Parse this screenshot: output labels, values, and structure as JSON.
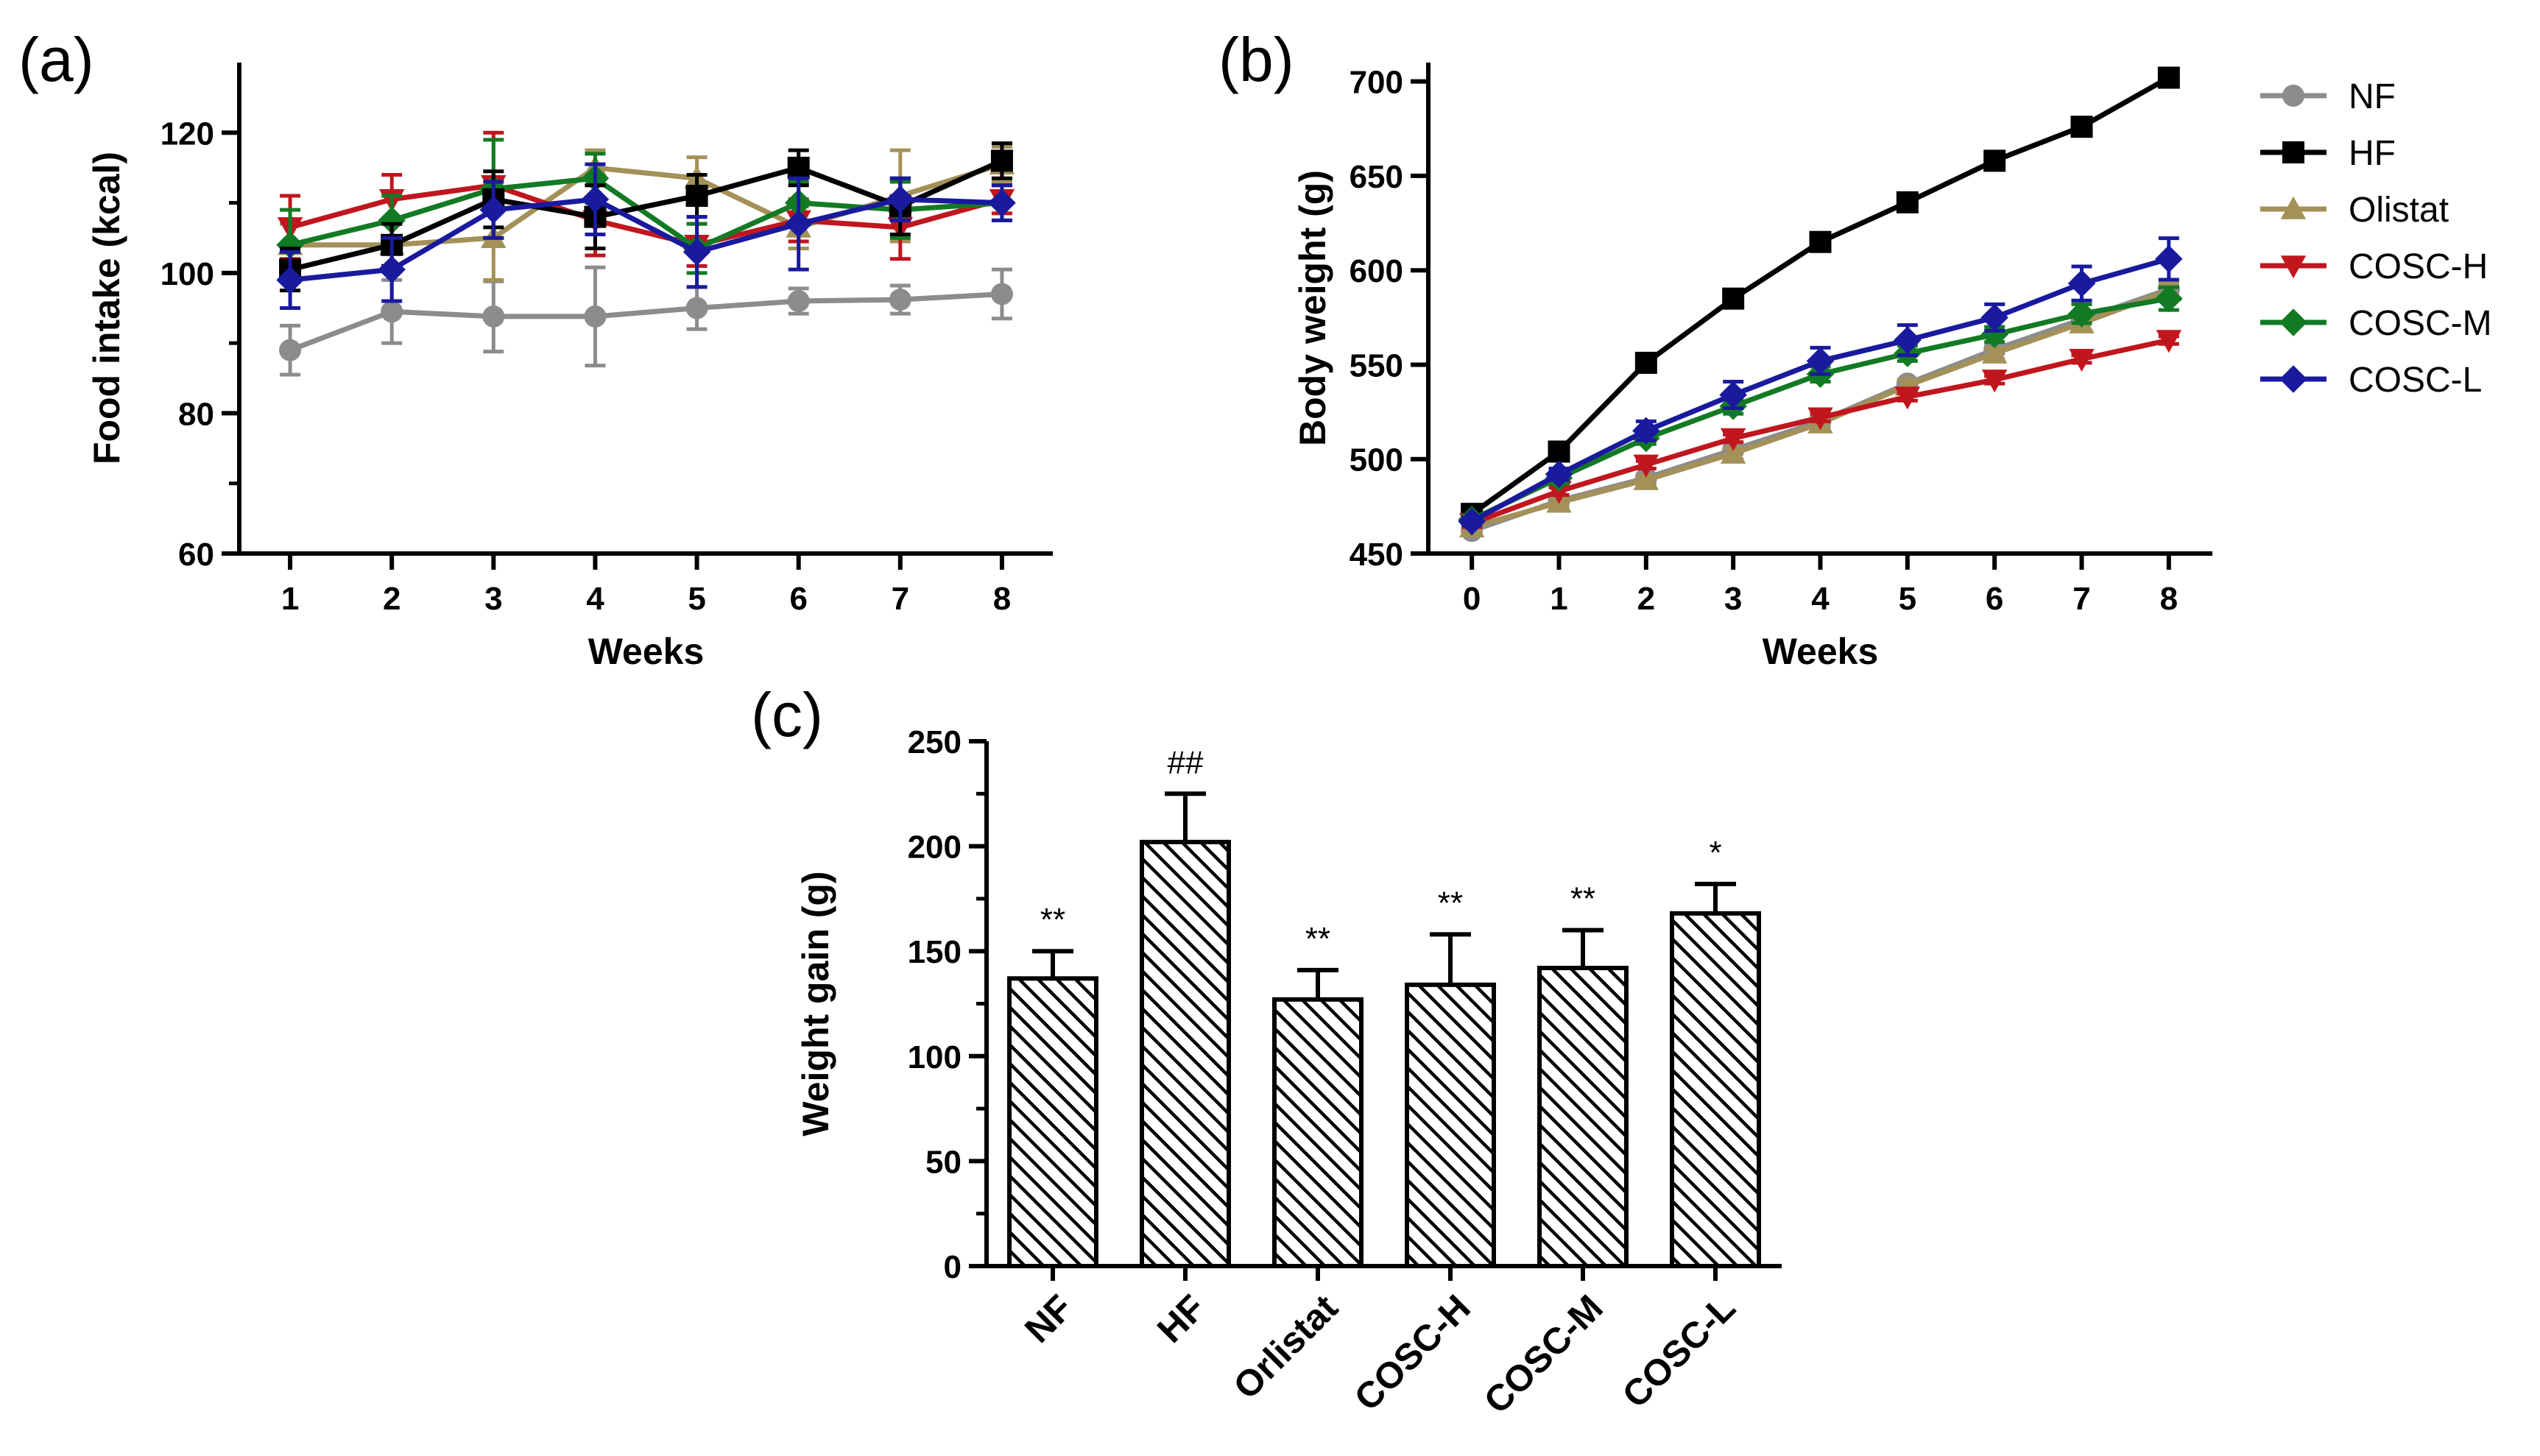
{
  "chart_data": [
    {
      "id": "a",
      "panel_label": "(a)",
      "type": "line",
      "xlabel": "Weeks",
      "ylabel": "Food intake (kcal)",
      "xlim": [
        0.5,
        8.5
      ],
      "ylim": [
        60,
        130
      ],
      "x_ticks": [
        1,
        2,
        3,
        4,
        5,
        6,
        7,
        8
      ],
      "y_ticks": [
        60,
        80,
        100,
        120
      ],
      "x": [
        1,
        2,
        3,
        4,
        5,
        6,
        7,
        8
      ],
      "series": [
        {
          "name": "NF",
          "color": "#8c8c8c",
          "marker": "circle",
          "values": [
            89,
            94.5,
            93.8,
            93.8,
            95,
            96,
            96.2,
            97
          ],
          "errors": [
            3.5,
            4.5,
            5,
            7,
            3,
            1.8,
            2,
            3.5
          ]
        },
        {
          "name": "Olistat",
          "color": "#a39158",
          "marker": "triangle",
          "values": [
            104,
            104,
            105,
            115,
            113.5,
            106.5,
            111,
            115.5
          ],
          "errors": [
            3,
            3,
            6,
            2.5,
            3,
            3,
            6.5,
            2.5
          ]
        },
        {
          "name": "COSC-H",
          "color": "#c0161e",
          "marker": "triangle-down",
          "values": [
            106.5,
            110.5,
            112.5,
            107.5,
            104,
            107.5,
            106.5,
            110.5
          ],
          "errors": [
            4.5,
            3.5,
            7.5,
            5,
            3,
            3,
            4.5,
            2
          ]
        },
        {
          "name": "COSC-M",
          "color": "#137a24",
          "marker": "diamond",
          "values": [
            104,
            107.5,
            112,
            113.5,
            103.5,
            110,
            109,
            110
          ],
          "errors": [
            5,
            3.5,
            7,
            3.5,
            3.5,
            3,
            4,
            2.5
          ]
        },
        {
          "name": "HF",
          "color": "#000000",
          "marker": "square",
          "values": [
            100.5,
            104,
            110.5,
            108,
            111,
            115,
            109.5,
            116
          ],
          "errors": [
            3,
            3,
            4,
            4.5,
            3,
            2.5,
            4,
            2.5
          ]
        },
        {
          "name": "COSC-L",
          "color": "#1a1a9e",
          "marker": "diamond",
          "values": [
            99,
            100.5,
            109,
            110.5,
            103,
            107,
            110.5,
            110
          ],
          "errors": [
            4,
            4.5,
            4,
            5,
            5,
            6.5,
            3,
            2.5
          ]
        }
      ]
    },
    {
      "id": "b",
      "panel_label": "(b)",
      "type": "line",
      "xlabel": "Weeks",
      "ylabel": "Body weight (g)",
      "xlim": [
        -0.5,
        8.5
      ],
      "ylim": [
        450,
        710
      ],
      "x_ticks": [
        0,
        1,
        2,
        3,
        4,
        5,
        6,
        7,
        8
      ],
      "y_ticks": [
        450,
        500,
        550,
        600,
        650,
        700
      ],
      "x": [
        0,
        1,
        2,
        3,
        4,
        5,
        6,
        7,
        8
      ],
      "series": [
        {
          "name": "NF",
          "color": "#8c8c8c",
          "marker": "circle",
          "values": [
            462,
            478,
            490,
            505,
            520,
            540,
            558,
            574,
            590
          ],
          "errors": [
            2,
            2,
            2,
            2,
            2,
            2,
            2,
            2,
            3
          ]
        },
        {
          "name": "HF",
          "color": "#000000",
          "marker": "square",
          "values": [
            471,
            504,
            551,
            585,
            615,
            636,
            658,
            676,
            702
          ],
          "errors": [
            2,
            2,
            2,
            2,
            2,
            2,
            2,
            2,
            2
          ]
        },
        {
          "name": "Olistat",
          "color": "#a39158",
          "marker": "triangle",
          "values": [
            464,
            477,
            489,
            503,
            519,
            539,
            556,
            572,
            589
          ],
          "errors": [
            2,
            2,
            2,
            3,
            3,
            3,
            3,
            4,
            4
          ]
        },
        {
          "name": "COSC-H",
          "color": "#c0161e",
          "marker": "triangle-down",
          "values": [
            466,
            483,
            497,
            511,
            522,
            533,
            542,
            553,
            563
          ],
          "errors": [
            2,
            2,
            2,
            2,
            2,
            2,
            2,
            2,
            2
          ]
        },
        {
          "name": "COSC-M",
          "color": "#137a24",
          "marker": "diamond",
          "values": [
            468,
            490,
            511,
            528,
            545,
            556,
            566,
            577,
            585
          ],
          "errors": [
            2,
            3,
            3,
            4,
            4,
            4,
            4,
            5,
            6
          ]
        },
        {
          "name": "COSC-L",
          "color": "#1a1a9e",
          "marker": "diamond",
          "values": [
            467,
            492,
            515,
            534,
            552,
            563,
            575,
            593,
            606
          ],
          "errors": [
            2,
            3,
            5,
            7,
            7,
            8,
            7,
            9,
            11
          ]
        }
      ],
      "legend": {
        "position": "right",
        "entries": [
          {
            "label": "NF",
            "color": "#8c8c8c",
            "marker": "circle"
          },
          {
            "label": "HF",
            "color": "#000000",
            "marker": "square"
          },
          {
            "label": "Olistat",
            "color": "#a39158",
            "marker": "triangle"
          },
          {
            "label": "COSC-H",
            "color": "#c0161e",
            "marker": "triangle-down"
          },
          {
            "label": "COSC-M",
            "color": "#137a24",
            "marker": "diamond"
          },
          {
            "label": "COSC-L",
            "color": "#1a1a9e",
            "marker": "diamond"
          }
        ]
      }
    },
    {
      "id": "c",
      "panel_label": "(c)",
      "type": "bar",
      "xlabel": "",
      "ylabel": "Weight gain (g)",
      "ylim": [
        0,
        250
      ],
      "y_ticks": [
        0,
        50,
        100,
        150,
        200,
        250
      ],
      "categories": [
        "NF",
        "HF",
        "Orlistat",
        "COSC-H",
        "COSC-M",
        "COSC-L"
      ],
      "values": [
        137,
        202,
        127,
        134,
        142,
        168
      ],
      "errors": [
        13,
        23,
        14,
        24,
        18,
        14
      ],
      "annotations": [
        "**",
        "##",
        "**",
        "**",
        "**",
        "*"
      ],
      "fill": "diagonal-hatch"
    }
  ]
}
